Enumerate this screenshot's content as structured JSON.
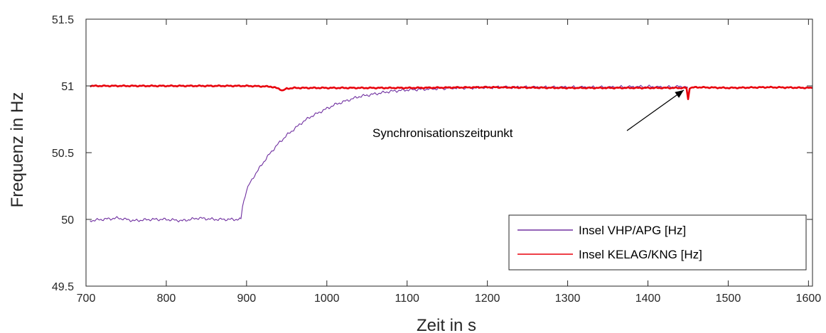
{
  "chart_data": {
    "type": "line",
    "xlabel": "Zeit in s",
    "ylabel": "Frequenz in Hz",
    "xlim": [
      700,
      1605
    ],
    "ylim": [
      49.5,
      51.5
    ],
    "xticks": [
      700,
      800,
      900,
      1000,
      1100,
      1200,
      1300,
      1400,
      1500,
      1600
    ],
    "yticks": [
      49.5,
      50,
      50.5,
      51,
      51.5
    ],
    "xtick_labels": [
      "700",
      "800",
      "900",
      "1000",
      "1100",
      "1200",
      "1300",
      "1400",
      "1500",
      "1600"
    ],
    "ytick_labels": [
      "49.5",
      "50",
      "50.5",
      "51",
      "51.5"
    ],
    "grid": false,
    "legend_position": "bottom-right",
    "annotation": {
      "text": "Synchronisationszeitpunkt",
      "arrow_from": [
        1143,
        50.75
      ],
      "arrow_to": [
        1450,
        50.99
      ]
    },
    "series": [
      {
        "name": "Insel VHP/APG [Hz]",
        "color": "#7030a0",
        "x": [
          705,
          720,
          740,
          760,
          780,
          800,
          820,
          840,
          860,
          880,
          893,
          895,
          900,
          905,
          910,
          920,
          930,
          940,
          950,
          960,
          970,
          980,
          990,
          1000,
          1010,
          1020,
          1030,
          1040,
          1050,
          1060,
          1070,
          1080,
          1090,
          1100,
          1120,
          1140,
          1160,
          1180,
          1200,
          1250,
          1300,
          1350,
          1400,
          1420,
          1440,
          1450
        ],
        "y": [
          49.99,
          50.0,
          50.01,
          49.99,
          50.0,
          50.0,
          49.99,
          50.01,
          50.0,
          50.0,
          50.0,
          50.1,
          50.22,
          50.28,
          50.33,
          50.42,
          50.5,
          50.57,
          50.63,
          50.68,
          50.73,
          50.77,
          50.8,
          50.83,
          50.86,
          50.88,
          50.9,
          50.92,
          50.93,
          50.94,
          50.95,
          50.96,
          50.965,
          50.97,
          50.975,
          50.98,
          50.985,
          50.985,
          50.99,
          50.99,
          50.99,
          50.99,
          50.995,
          50.99,
          50.995,
          50.99
        ]
      },
      {
        "name": "Insel KELAG/KNG [Hz]",
        "color": "#e8000b",
        "x": [
          705,
          750,
          800,
          850,
          900,
          930,
          940,
          945,
          950,
          960,
          1000,
          1100,
          1200,
          1300,
          1400,
          1448,
          1450,
          1452,
          1460,
          1500,
          1550,
          1605
        ],
        "y": [
          51.0,
          51.0,
          51.0,
          51.0,
          51.0,
          50.995,
          50.98,
          50.965,
          50.98,
          50.985,
          50.985,
          50.985,
          50.99,
          50.985,
          50.985,
          50.985,
          50.9,
          50.985,
          50.99,
          50.985,
          50.99,
          50.985
        ]
      }
    ]
  }
}
